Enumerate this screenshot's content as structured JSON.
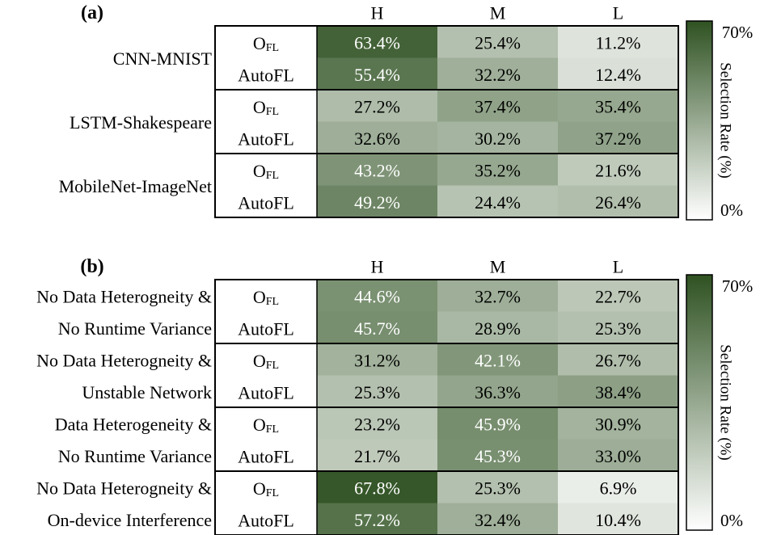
{
  "panels": [
    {
      "label": "(a)",
      "columns": [
        "H",
        "M",
        "L"
      ],
      "groups": [
        {
          "name_lines": [
            "CNN-MNIST"
          ],
          "rows": [
            {
              "method": "O",
              "method_sub": "FL",
              "values": [
                63.4,
                25.4,
                11.2
              ],
              "labels": [
                "63.4%",
                "25.4%",
                "11.2%"
              ]
            },
            {
              "method": "AutoFL",
              "method_sub": "",
              "values": [
                55.4,
                32.2,
                12.4
              ],
              "labels": [
                "55.4%",
                "32.2%",
                "12.4%"
              ]
            }
          ]
        },
        {
          "name_lines": [
            "LSTM-Shakespeare"
          ],
          "rows": [
            {
              "method": "O",
              "method_sub": "FL",
              "values": [
                27.2,
                37.4,
                35.4
              ],
              "labels": [
                "27.2%",
                "37.4%",
                "35.4%"
              ]
            },
            {
              "method": "AutoFL",
              "method_sub": "",
              "values": [
                32.6,
                30.2,
                37.2
              ],
              "labels": [
                "32.6%",
                "30.2%",
                "37.2%"
              ]
            }
          ]
        },
        {
          "name_lines": [
            "MobileNet-ImageNet"
          ],
          "rows": [
            {
              "method": "O",
              "method_sub": "FL",
              "values": [
                43.2,
                35.2,
                21.6
              ],
              "labels": [
                "43.2%",
                "35.2%",
                "21.6%"
              ]
            },
            {
              "method": "AutoFL",
              "method_sub": "",
              "values": [
                49.2,
                24.4,
                26.4
              ],
              "labels": [
                "49.2%",
                "24.4%",
                "26.4%"
              ]
            }
          ]
        }
      ],
      "colorbar": {
        "title": "Selection Rate (%)",
        "max_label": "70%",
        "min_label": "0%"
      }
    },
    {
      "label": "(b)",
      "columns": [
        "H",
        "M",
        "L"
      ],
      "groups": [
        {
          "name_lines": [
            "No Data Heterogneity &",
            "No Runtime Variance"
          ],
          "rows": [
            {
              "method": "O",
              "method_sub": "FL",
              "values": [
                44.6,
                32.7,
                22.7
              ],
              "labels": [
                "44.6%",
                "32.7%",
                "22.7%"
              ]
            },
            {
              "method": "AutoFL",
              "method_sub": "",
              "values": [
                45.7,
                28.9,
                25.3
              ],
              "labels": [
                "45.7%",
                "28.9%",
                "25.3%"
              ]
            }
          ]
        },
        {
          "name_lines": [
            "No Data Heterogneity &",
            "Unstable Network"
          ],
          "rows": [
            {
              "method": "O",
              "method_sub": "FL",
              "values": [
                31.2,
                42.1,
                26.7
              ],
              "labels": [
                "31.2%",
                "42.1%",
                "26.7%"
              ]
            },
            {
              "method": "AutoFL",
              "method_sub": "",
              "values": [
                25.3,
                36.3,
                38.4
              ],
              "labels": [
                "25.3%",
                "36.3%",
                "38.4%"
              ]
            }
          ]
        },
        {
          "name_lines": [
            "Data Heterogeneity &",
            "No Runtime Variance"
          ],
          "rows": [
            {
              "method": "O",
              "method_sub": "FL",
              "values": [
                23.2,
                45.9,
                30.9
              ],
              "labels": [
                "23.2%",
                "45.9%",
                "30.9%"
              ]
            },
            {
              "method": "AutoFL",
              "method_sub": "",
              "values": [
                21.7,
                45.3,
                33.0
              ],
              "labels": [
                "21.7%",
                "45.3%",
                "33.0%"
              ]
            }
          ]
        },
        {
          "name_lines": [
            "No Data Heterogneity &",
            "On-device Interference"
          ],
          "rows": [
            {
              "method": "O",
              "method_sub": "FL",
              "values": [
                67.8,
                25.3,
                6.9
              ],
              "labels": [
                "67.8%",
                "25.3%",
                "6.9%"
              ]
            },
            {
              "method": "AutoFL",
              "method_sub": "",
              "values": [
                57.2,
                32.4,
                10.4
              ],
              "labels": [
                "57.2%",
                "32.4%",
                "10.4%"
              ]
            }
          ]
        }
      ],
      "colorbar": {
        "title": "Selection Rate (%)",
        "max_label": "70%",
        "min_label": "0%"
      }
    }
  ],
  "chart_data": [
    {
      "type": "heatmap",
      "title": "(a)",
      "x_categories": [
        "H",
        "M",
        "L"
      ],
      "y_groups": [
        "CNN-MNIST",
        "LSTM-Shakespeare",
        "MobileNet-ImageNet"
      ],
      "y_rows": [
        "OFL",
        "AutoFL"
      ],
      "values": [
        [
          63.4,
          25.4,
          11.2
        ],
        [
          55.4,
          32.2,
          12.4
        ],
        [
          27.2,
          37.4,
          35.4
        ],
        [
          32.6,
          30.2,
          37.2
        ],
        [
          43.2,
          35.2,
          21.6
        ],
        [
          49.2,
          24.4,
          26.4
        ]
      ],
      "unit": "%",
      "colorbar_range": [
        0,
        70
      ],
      "colorbar_label": "Selection Rate (%)"
    },
    {
      "type": "heatmap",
      "title": "(b)",
      "x_categories": [
        "H",
        "M",
        "L"
      ],
      "y_groups": [
        "No Data Heterogneity & No Runtime Variance",
        "No Data Heterogneity & Unstable Network",
        "Data Heterogeneity & No Runtime Variance",
        "No Data Heterogneity & On-device Interference"
      ],
      "y_rows": [
        "OFL",
        "AutoFL"
      ],
      "values": [
        [
          44.6,
          32.7,
          22.7
        ],
        [
          45.7,
          28.9,
          25.3
        ],
        [
          31.2,
          42.1,
          26.7
        ],
        [
          25.3,
          36.3,
          38.4
        ],
        [
          23.2,
          45.9,
          30.9
        ],
        [
          21.7,
          45.3,
          33.0
        ],
        [
          67.8,
          25.3,
          6.9
        ],
        [
          57.2,
          32.4,
          10.4
        ]
      ],
      "unit": "%",
      "colorbar_range": [
        0,
        70
      ],
      "colorbar_label": "Selection Rate (%)"
    }
  ],
  "colors": {
    "low": "#ffffff",
    "high": "#2f5222",
    "border": "#000000"
  }
}
